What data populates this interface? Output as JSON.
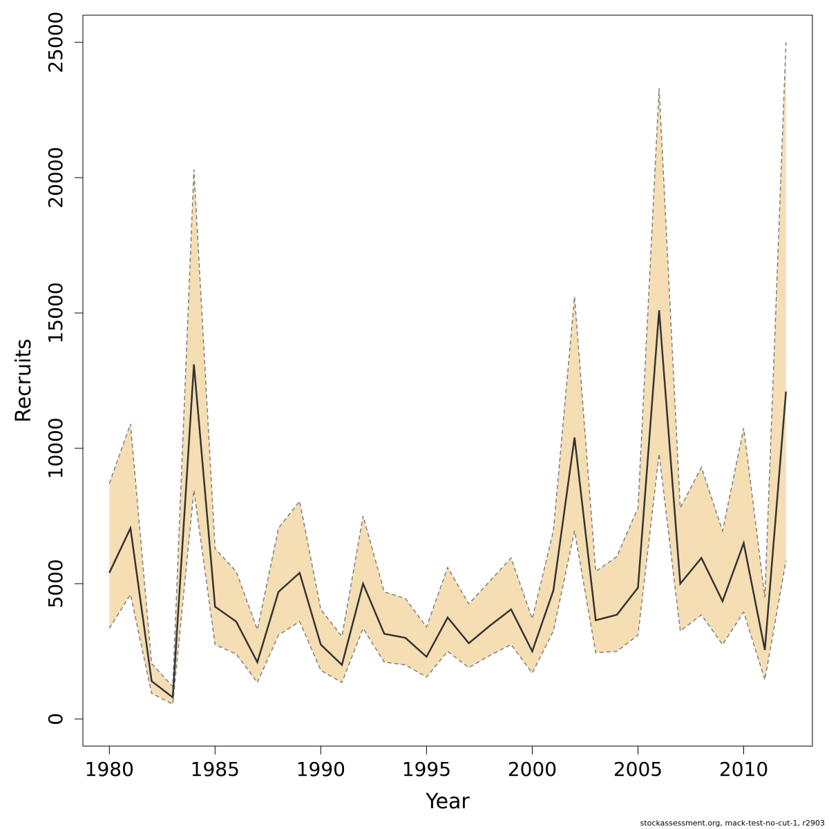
{
  "chart_data": {
    "type": "area",
    "xlabel": "Year",
    "ylabel": "Recruits",
    "xlim": [
      1978.75,
      2013.25
    ],
    "ylim": [
      -1000,
      26000
    ],
    "xticks": [
      1980,
      1985,
      1990,
      1995,
      2000,
      2005,
      2010
    ],
    "yticks": [
      0,
      5000,
      10000,
      15000,
      20000,
      25000
    ],
    "x": [
      1980,
      1981,
      1982,
      1983,
      1984,
      1985,
      1986,
      1987,
      1988,
      1989,
      1990,
      1991,
      1992,
      1993,
      1994,
      1995,
      1996,
      1997,
      1998,
      1999,
      2000,
      2001,
      2002,
      2003,
      2004,
      2005,
      2006,
      2007,
      2008,
      2009,
      2010,
      2011,
      2012
    ],
    "series": [
      {
        "role": "estimate",
        "values": [
          5400,
          7050,
          1400,
          800,
          13100,
          4150,
          3600,
          2100,
          4700,
          5400,
          2750,
          2000,
          5000,
          3150,
          3000,
          2300,
          3750,
          2800,
          3450,
          4050,
          2500,
          4750,
          10400,
          3650,
          3850,
          4850,
          15100,
          5000,
          5950,
          4350,
          6500,
          2550,
          12100
        ]
      },
      {
        "role": "upper",
        "values": [
          8700,
          10900,
          2050,
          1200,
          20300,
          6300,
          5450,
          3300,
          7050,
          8050,
          4050,
          3050,
          7500,
          4700,
          4450,
          3400,
          5600,
          4250,
          5100,
          5950,
          3700,
          6950,
          15600,
          5450,
          6000,
          7800,
          23300,
          7800,
          9300,
          6950,
          10750,
          4500,
          25000
        ]
      },
      {
        "role": "lower",
        "values": [
          3350,
          4600,
          950,
          550,
          8450,
          2750,
          2400,
          1350,
          3100,
          3600,
          1800,
          1350,
          3350,
          2100,
          2000,
          1550,
          2500,
          1900,
          2350,
          2750,
          1700,
          3250,
          6950,
          2450,
          2500,
          3100,
          9800,
          3250,
          3850,
          2750,
          3950,
          1450,
          5850
        ]
      }
    ],
    "colors": {
      "band": "#f5deb3",
      "band_edge": "#7f7f7f",
      "line": "#333333",
      "frame": "#000000"
    },
    "grid": false,
    "legend": "none"
  },
  "footer": {
    "text": "stockassessment.org, mack-test-no-cut-1, r2903"
  }
}
